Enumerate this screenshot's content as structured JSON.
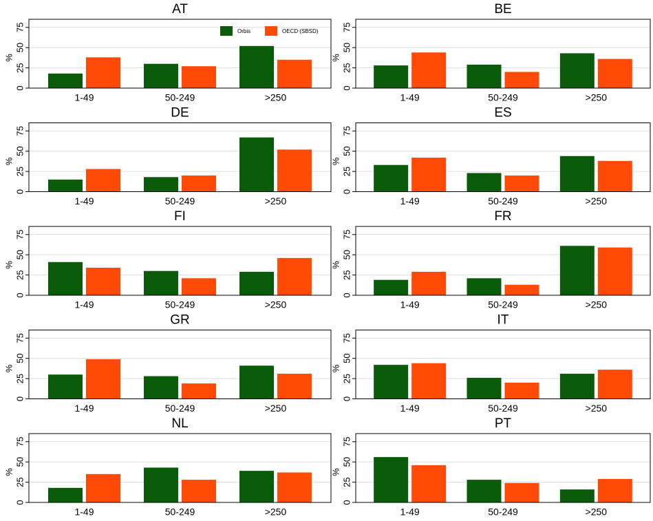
{
  "chart_data": [
    {
      "type": "bar",
      "title": "AT",
      "y_label": "%",
      "categories": [
        "1-49",
        "50-249",
        ">250"
      ],
      "series": [
        {
          "name": "Orbis",
          "color": "#0a5c0a",
          "values": [
            18,
            30,
            52
          ]
        },
        {
          "name": "OECD (SBSD)",
          "color": "#ff4a08",
          "values": [
            38,
            27,
            35
          ]
        }
      ],
      "ylim": [
        0,
        85
      ],
      "yticks": [
        0,
        25,
        50,
        75
      ],
      "grid": true,
      "legend": "top-right"
    },
    {
      "type": "bar",
      "title": "BE",
      "y_label": "%",
      "categories": [
        "1-49",
        "50-249",
        ">250"
      ],
      "series": [
        {
          "name": "Orbis",
          "color": "#0a5c0a",
          "values": [
            28,
            29,
            43
          ]
        },
        {
          "name": "OECD (SBSD)",
          "color": "#ff4a08",
          "values": [
            44,
            20,
            36
          ]
        }
      ],
      "ylim": [
        0,
        85
      ],
      "yticks": [
        0,
        25,
        50,
        75
      ],
      "grid": true
    },
    {
      "type": "bar",
      "title": "DE",
      "y_label": "%",
      "categories": [
        "1-49",
        "50-249",
        ">250"
      ],
      "series": [
        {
          "name": "Orbis",
          "color": "#0a5c0a",
          "values": [
            15,
            18,
            67
          ]
        },
        {
          "name": "OECD (SBSD)",
          "color": "#ff4a08",
          "values": [
            28,
            20,
            52
          ]
        }
      ],
      "ylim": [
        0,
        85
      ],
      "yticks": [
        0,
        25,
        50,
        75
      ],
      "grid": true
    },
    {
      "type": "bar",
      "title": "ES",
      "y_label": "%",
      "categories": [
        "1-49",
        "50-249",
        ">250"
      ],
      "series": [
        {
          "name": "Orbis",
          "color": "#0a5c0a",
          "values": [
            33,
            23,
            44
          ]
        },
        {
          "name": "OECD (SBSD)",
          "color": "#ff4a08",
          "values": [
            42,
            20,
            38
          ]
        }
      ],
      "ylim": [
        0,
        85
      ],
      "yticks": [
        0,
        25,
        50,
        75
      ],
      "grid": true
    },
    {
      "type": "bar",
      "title": "FI",
      "y_label": "%",
      "categories": [
        "1-49",
        "50-249",
        ">250"
      ],
      "series": [
        {
          "name": "Orbis",
          "color": "#0a5c0a",
          "values": [
            41,
            30,
            29
          ]
        },
        {
          "name": "OECD (SBSD)",
          "color": "#ff4a08",
          "values": [
            34,
            21,
            46
          ]
        }
      ],
      "ylim": [
        0,
        85
      ],
      "yticks": [
        0,
        25,
        50,
        75
      ],
      "grid": true
    },
    {
      "type": "bar",
      "title": "FR",
      "y_label": "%",
      "categories": [
        "1-49",
        "50-249",
        ">250"
      ],
      "series": [
        {
          "name": "Orbis",
          "color": "#0a5c0a",
          "values": [
            19,
            21,
            61
          ]
        },
        {
          "name": "OECD (SBSD)",
          "color": "#ff4a08",
          "values": [
            29,
            13,
            59
          ]
        }
      ],
      "ylim": [
        0,
        85
      ],
      "yticks": [
        0,
        25,
        50,
        75
      ],
      "grid": true
    },
    {
      "type": "bar",
      "title": "GR",
      "y_label": "%",
      "categories": [
        "1-49",
        "50-249",
        ">250"
      ],
      "series": [
        {
          "name": "Orbis",
          "color": "#0a5c0a",
          "values": [
            30,
            28,
            41
          ]
        },
        {
          "name": "OECD (SBSD)",
          "color": "#ff4a08",
          "values": [
            49,
            19,
            31
          ]
        }
      ],
      "ylim": [
        0,
        85
      ],
      "yticks": [
        0,
        25,
        50,
        75
      ],
      "grid": true
    },
    {
      "type": "bar",
      "title": "IT",
      "y_label": "%",
      "categories": [
        "1-49",
        "50-249",
        ">250"
      ],
      "series": [
        {
          "name": "Orbis",
          "color": "#0a5c0a",
          "values": [
            42,
            26,
            31
          ]
        },
        {
          "name": "OECD (SBSD)",
          "color": "#ff4a08",
          "values": [
            44,
            20,
            36
          ]
        }
      ],
      "ylim": [
        0,
        85
      ],
      "yticks": [
        0,
        25,
        50,
        75
      ],
      "grid": true
    },
    {
      "type": "bar",
      "title": "NL",
      "y_label": "%",
      "categories": [
        "1-49",
        "50-249",
        ">250"
      ],
      "series": [
        {
          "name": "Orbis",
          "color": "#0a5c0a",
          "values": [
            18,
            43,
            39
          ]
        },
        {
          "name": "OECD (SBSD)",
          "color": "#ff4a08",
          "values": [
            35,
            28,
            37
          ]
        }
      ],
      "ylim": [
        0,
        85
      ],
      "yticks": [
        0,
        25,
        50,
        75
      ],
      "grid": true
    },
    {
      "type": "bar",
      "title": "PT",
      "y_label": "%",
      "categories": [
        "1-49",
        "50-249",
        ">250"
      ],
      "series": [
        {
          "name": "Orbis",
          "color": "#0a5c0a",
          "values": [
            56,
            28,
            16
          ]
        },
        {
          "name": "OECD (SBSD)",
          "color": "#ff4a08",
          "values": [
            46,
            24,
            29
          ]
        }
      ],
      "ylim": [
        0,
        85
      ],
      "yticks": [
        0,
        25,
        50,
        75
      ],
      "grid": true
    }
  ]
}
